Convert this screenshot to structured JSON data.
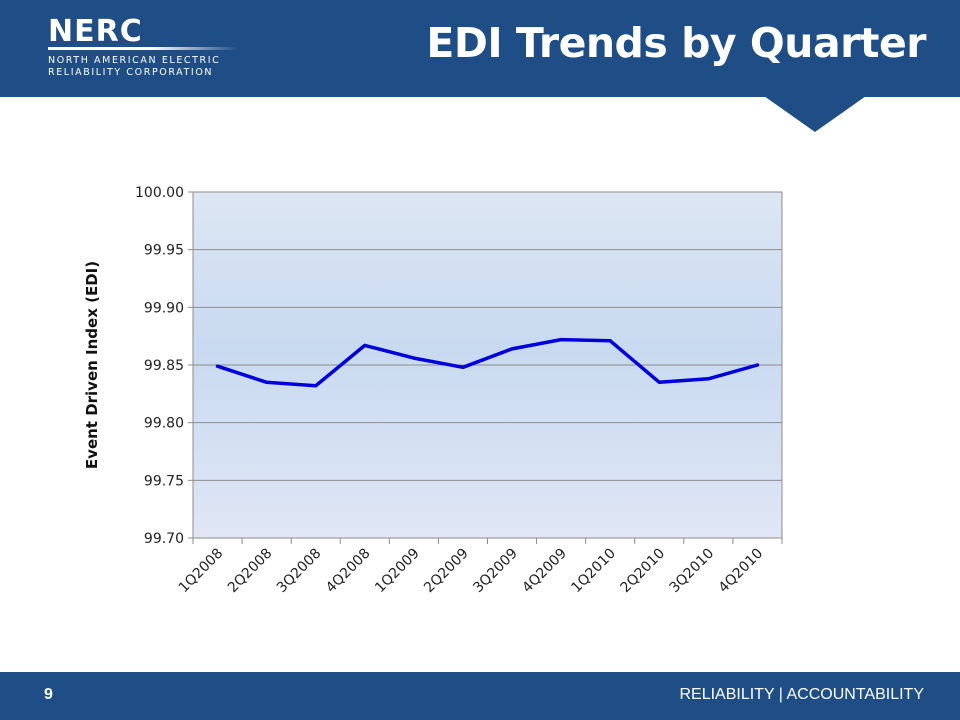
{
  "logo": {
    "word": "NERC",
    "line1": "NORTH AMERICAN ELECTRIC",
    "line2": "RELIABILITY CORPORATION"
  },
  "slide": {
    "title": "EDI Trends by Quarter",
    "page_number": "9",
    "tagline": "RELIABILITY | ACCOUNTABILITY"
  },
  "colors": {
    "brand": "#1f4e86",
    "line": "#0000dd",
    "plot_top": "#dde6f3",
    "plot_mid": "#c8daf0",
    "plot_bottom": "#e0e6f5"
  },
  "chart_data": {
    "type": "line",
    "title": "",
    "xlabel": "",
    "ylabel": "Event Driven Index (EDI)",
    "categories": [
      "1Q2008",
      "2Q2008",
      "3Q2008",
      "4Q2008",
      "1Q2009",
      "2Q2009",
      "3Q2009",
      "4Q2009",
      "1Q2010",
      "2Q2010",
      "3Q2010",
      "4Q2010"
    ],
    "series": [
      {
        "values": [
          99.849,
          99.835,
          99.832,
          99.867,
          99.856,
          99.848,
          99.864,
          99.872,
          99.871,
          99.835,
          99.838,
          99.85
        ]
      }
    ],
    "ylim": [
      99.7,
      100.0
    ],
    "yticks": [
      "99.70",
      "99.75",
      "99.80",
      "99.85",
      "99.90",
      "99.95",
      "100.00"
    ],
    "grid": true,
    "legend": "none"
  }
}
